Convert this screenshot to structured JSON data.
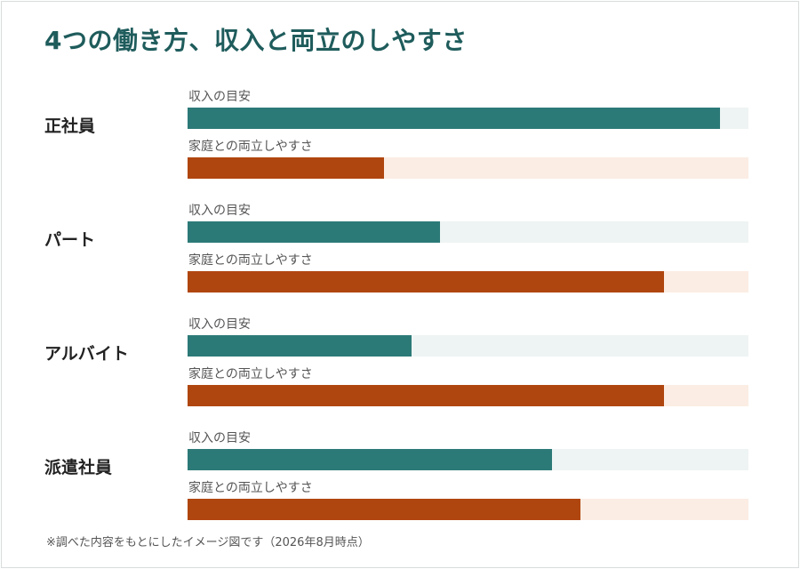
{
  "title": "4つの働き方、収入と両立のしやすさ",
  "footnote": "※調べた内容をもとにしたイメージ図です（2026年8月時点）",
  "colors": {
    "title": "#1f5c5c",
    "income_bar": "#2c7a78",
    "income_track": "#eef4f3",
    "balance_bar": "#b0460f",
    "balance_track": "#fbede4"
  },
  "chart_data": {
    "type": "bar",
    "orientation": "horizontal",
    "title": "4つの働き方、収入と両立のしやすさ",
    "categories": [
      "正社員",
      "パート",
      "アルバイト",
      "派遣社員"
    ],
    "series": [
      {
        "name": "収入の目安",
        "values": [
          95,
          45,
          40,
          65
        ]
      },
      {
        "name": "家庭との両立しやすさ",
        "values": [
          35,
          85,
          85,
          70
        ]
      }
    ],
    "xlim": [
      0,
      100
    ],
    "axes_visible": false,
    "grid": false
  }
}
